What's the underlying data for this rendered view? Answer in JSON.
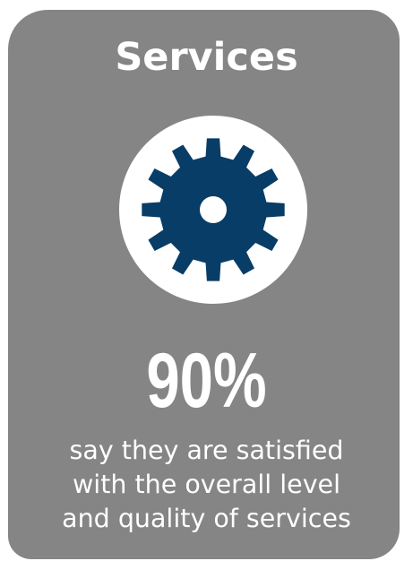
{
  "card": {
    "title": "Services",
    "icon": "gear-icon",
    "percent": "90%",
    "caption_lines": [
      "say they are satisfied",
      "with the overall level",
      "and quality of services"
    ]
  },
  "colors": {
    "card_background": "#858585",
    "icon_circle": "#ffffff",
    "gear": "#073d66",
    "text": "#ffffff"
  }
}
